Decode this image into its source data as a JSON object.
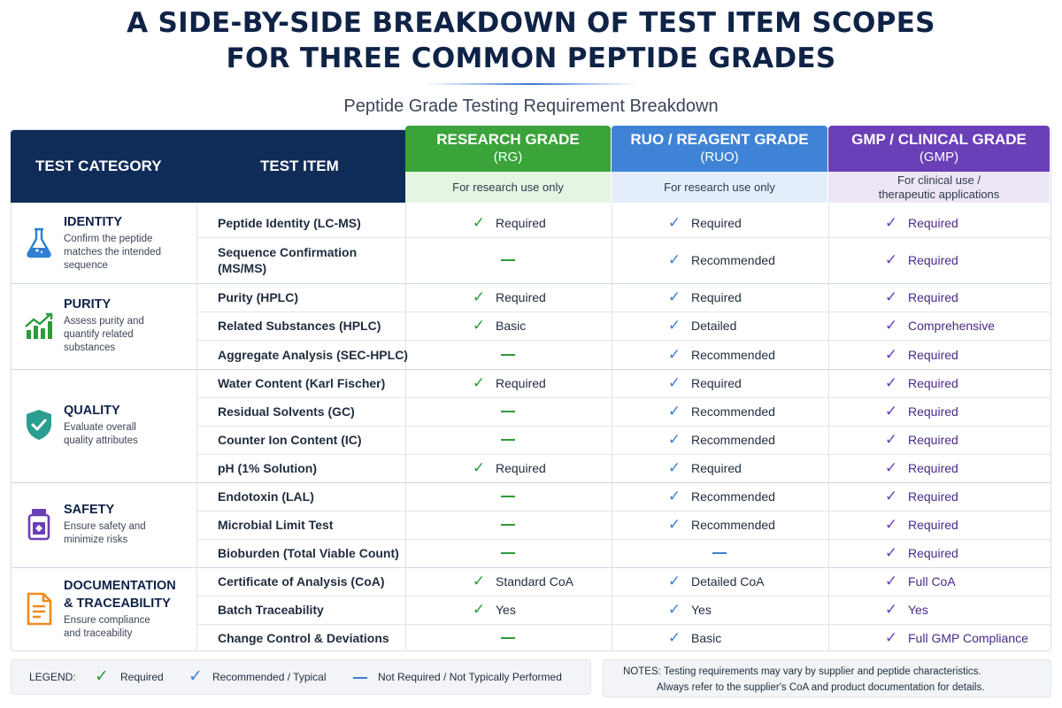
{
  "title_line1": "A SIDE-BY-SIDE BREAKDOWN OF TEST ITEM SCOPES",
  "title_line2": "FOR THREE COMMON PEPTIDE GRADES",
  "subtitle": "Peptide Grade Testing Requirement Breakdown",
  "header": {
    "test_category": "TEST CATEGORY",
    "test_item": "TEST ITEM"
  },
  "grades": [
    {
      "name": "RESEARCH GRADE",
      "abbr": "(RG)",
      "sub1": "For research use only",
      "sub2": "",
      "color": "#3aa33a",
      "light": "#e6f4e2",
      "mark": "#2e9a3a"
    },
    {
      "name": "RUO / REAGENT GRADE",
      "abbr": "(RUO)",
      "sub1": "For research use only",
      "sub2": "",
      "color": "#3f83d6",
      "light": "#e4eefa",
      "mark": "#3a7fd0"
    },
    {
      "name": "GMP / CLINICAL GRADE",
      "abbr": "(GMP)",
      "sub1": "For clinical use /",
      "sub2": "therapeutic applications",
      "color": "#6a3fb8",
      "light": "#ede6f6",
      "mark": "#6b3fb6"
    }
  ],
  "categories": [
    {
      "title1": "IDENTITY",
      "title2": "",
      "desc1": "Confirm the peptide",
      "desc2": "matches the intended",
      "desc3": "sequence",
      "icon": "flask-icon",
      "color": "#2f7fd3"
    },
    {
      "title1": "PURITY",
      "title2": "",
      "desc1": "Assess purity and",
      "desc2": "quantify related",
      "desc3": "substances",
      "icon": "chart-icon",
      "color": "#2e9a3a"
    },
    {
      "title1": "QUALITY",
      "title2": "",
      "desc1": "Evaluate overall",
      "desc2": "quality attributes",
      "desc3": "",
      "icon": "shield-check-icon",
      "color": "#2a9d8f"
    },
    {
      "title1": "SAFETY",
      "title2": "",
      "desc1": "Ensure safety and",
      "desc2": "minimize risks",
      "desc3": "",
      "icon": "vial-icon",
      "color": "#6b3fb6"
    },
    {
      "title1": "DOCUMENTATION",
      "title2": "& TRACEABILITY",
      "desc1": "Ensure compliance",
      "desc2": "and traceability",
      "desc3": "",
      "icon": "document-icon",
      "color": "#f08a1c"
    }
  ],
  "rows": [
    {
      "item1": "Peptide Identity (LC-MS)",
      "item2": "",
      "values": [
        {
          "s": "req",
          "t": "Required"
        },
        {
          "s": "rec",
          "t": "Required"
        },
        {
          "s": "req",
          "t": "Required"
        }
      ]
    },
    {
      "item1": "Sequence Confirmation",
      "item2": "(MS/MS)",
      "values": [
        {
          "s": "none",
          "t": ""
        },
        {
          "s": "rec",
          "t": "Recommended"
        },
        {
          "s": "req",
          "t": "Required"
        }
      ]
    },
    {
      "item1": "Purity (HPLC)",
      "item2": "",
      "values": [
        {
          "s": "req",
          "t": "Required"
        },
        {
          "s": "rec",
          "t": "Required"
        },
        {
          "s": "req",
          "t": "Required"
        }
      ]
    },
    {
      "item1": "Related Substances (HPLC)",
      "item2": "",
      "values": [
        {
          "s": "req",
          "t": "Basic"
        },
        {
          "s": "rec",
          "t": "Detailed"
        },
        {
          "s": "req",
          "t": "Comprehensive"
        }
      ]
    },
    {
      "item1": "Aggregate Analysis (SEC-HPLC)",
      "item2": "",
      "values": [
        {
          "s": "none",
          "t": ""
        },
        {
          "s": "rec",
          "t": "Recommended"
        },
        {
          "s": "req",
          "t": "Required"
        }
      ]
    },
    {
      "item1": "Water Content (Karl Fischer)",
      "item2": "",
      "values": [
        {
          "s": "req",
          "t": "Required"
        },
        {
          "s": "rec",
          "t": "Required"
        },
        {
          "s": "req",
          "t": "Required"
        }
      ]
    },
    {
      "item1": "Residual Solvents (GC)",
      "item2": "",
      "values": [
        {
          "s": "none",
          "t": ""
        },
        {
          "s": "rec",
          "t": "Recommended"
        },
        {
          "s": "req",
          "t": "Required"
        }
      ]
    },
    {
      "item1": "Counter Ion Content (IC)",
      "item2": "",
      "values": [
        {
          "s": "none",
          "t": ""
        },
        {
          "s": "rec",
          "t": "Recommended"
        },
        {
          "s": "req",
          "t": "Required"
        }
      ]
    },
    {
      "item1": "pH (1% Solution)",
      "item2": "",
      "values": [
        {
          "s": "req",
          "t": "Required"
        },
        {
          "s": "rec",
          "t": "Required"
        },
        {
          "s": "req",
          "t": "Required"
        }
      ]
    },
    {
      "item1": "Endotoxin (LAL)",
      "item2": "",
      "values": [
        {
          "s": "none",
          "t": ""
        },
        {
          "s": "rec",
          "t": "Recommended"
        },
        {
          "s": "req",
          "t": "Required"
        }
      ]
    },
    {
      "item1": "Microbial Limit Test",
      "item2": "",
      "values": [
        {
          "s": "none",
          "t": ""
        },
        {
          "s": "rec",
          "t": "Recommended"
        },
        {
          "s": "req",
          "t": "Required"
        }
      ]
    },
    {
      "item1": "Bioburden (Total Viable Count)",
      "item2": "",
      "values": [
        {
          "s": "none",
          "t": ""
        },
        {
          "s": "none",
          "t": ""
        },
        {
          "s": "req",
          "t": "Required"
        }
      ]
    },
    {
      "item1": "Certificate of Analysis (CoA)",
      "item2": "",
      "values": [
        {
          "s": "req",
          "t": "Standard CoA"
        },
        {
          "s": "rec",
          "t": "Detailed CoA"
        },
        {
          "s": "req",
          "t": "Full CoA"
        }
      ]
    },
    {
      "item1": "Batch Traceability",
      "item2": "",
      "values": [
        {
          "s": "req",
          "t": "Yes"
        },
        {
          "s": "rec",
          "t": "Yes"
        },
        {
          "s": "req",
          "t": "Yes"
        }
      ]
    },
    {
      "item1": "Change Control & Deviations",
      "item2": "",
      "values": [
        {
          "s": "none",
          "t": ""
        },
        {
          "s": "rec",
          "t": "Basic"
        },
        {
          "s": "req",
          "t": "Full GMP Compliance"
        }
      ]
    }
  ],
  "legend": {
    "label": "LEGEND:",
    "required": "Required",
    "recommended": "Recommended / Typical",
    "not_required": "Not Required / Not Typically Performed"
  },
  "notes": {
    "label": "NOTES:",
    "line1": "Testing requirements may vary by supplier and peptide characteristics.",
    "line2": "Always refer to the supplier's CoA and product documentation for details."
  }
}
